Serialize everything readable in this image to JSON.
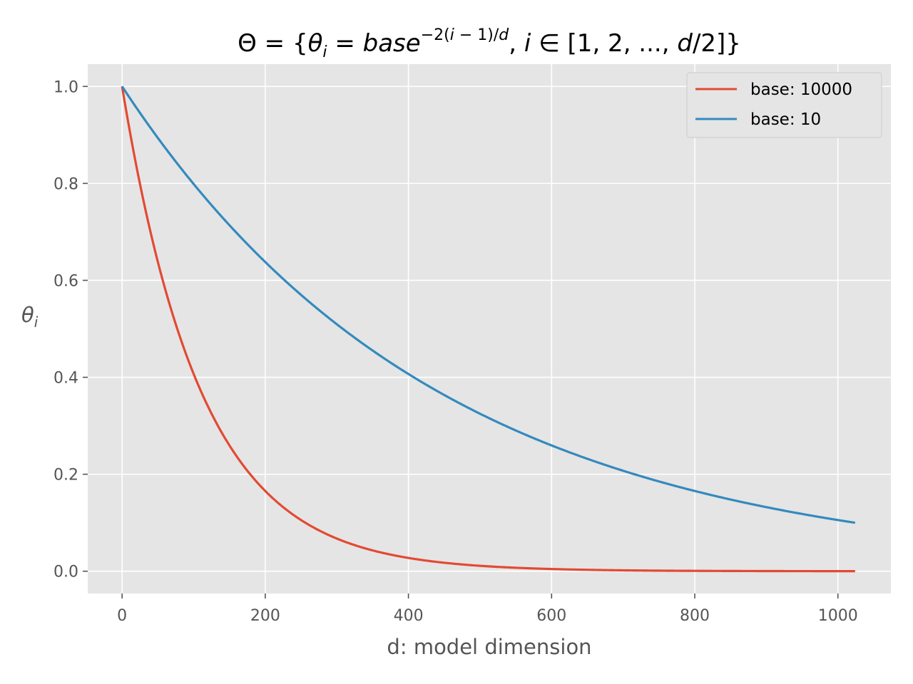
{
  "chart_data": {
    "type": "line",
    "title": {
      "theta_cap": "Θ",
      "eq1": " = {",
      "theta": "θ",
      "sub_i": "i",
      "eq2": " = ",
      "base": "base",
      "exp_a": "−2(",
      "exp_i": "i",
      "exp_b": " − 1)/",
      "exp_d": "d",
      "comma": ", ",
      "i": "i",
      "in": " ∈ [1, 2, ..., ",
      "d": "d",
      "close": "/2]}"
    },
    "xlabel": "d: model dimension",
    "ylabel": {
      "theta": "θ",
      "sub": "i"
    },
    "xlim": [
      -48,
      1074
    ],
    "ylim": [
      -0.046,
      1.046
    ],
    "x_ticks": [
      0,
      200,
      400,
      600,
      800,
      1000
    ],
    "x_tick_labels": [
      "0",
      "200",
      "400",
      "600",
      "800",
      "1000"
    ],
    "y_ticks": [
      0.0,
      0.2,
      0.4,
      0.6,
      0.8,
      1.0
    ],
    "y_tick_labels": [
      "0.0",
      "0.2",
      "0.4",
      "0.6",
      "0.8",
      "1.0"
    ],
    "grid": true,
    "legend_position": "top-right",
    "d_range": [
      0,
      1024
    ],
    "series": [
      {
        "name": "base: 10000",
        "base": 10000,
        "color": "#E24A33"
      },
      {
        "name": "base: 10",
        "base": 10,
        "color": "#348ABD"
      }
    ],
    "background_color": "#E5E5E5",
    "grid_color": "#FFFFFF"
  }
}
